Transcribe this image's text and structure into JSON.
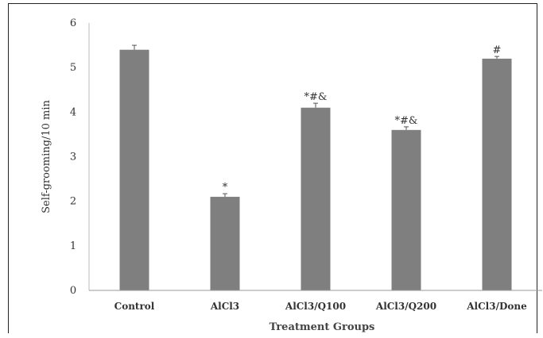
{
  "chart_data": {
    "type": "bar",
    "categories": [
      "Control",
      "AlCl3",
      "AlCl3/Q100",
      "AlCl3/Q200",
      "AlCl3/Done"
    ],
    "values": [
      5.4,
      2.1,
      4.1,
      3.6,
      5.2
    ],
    "errors": [
      0.1,
      0.07,
      0.1,
      0.07,
      0.05
    ],
    "significance": [
      "",
      "*",
      "*#&",
      "*#&",
      "#"
    ],
    "title": "",
    "xlabel": "Treatment Groups",
    "ylabel": "Self-grooming/10 min",
    "ylim": [
      0,
      6
    ],
    "yticks": [
      0,
      1,
      2,
      3,
      4,
      5,
      6
    ],
    "grid": false,
    "legend": "none",
    "bar_color": "#7f7f7f"
  }
}
